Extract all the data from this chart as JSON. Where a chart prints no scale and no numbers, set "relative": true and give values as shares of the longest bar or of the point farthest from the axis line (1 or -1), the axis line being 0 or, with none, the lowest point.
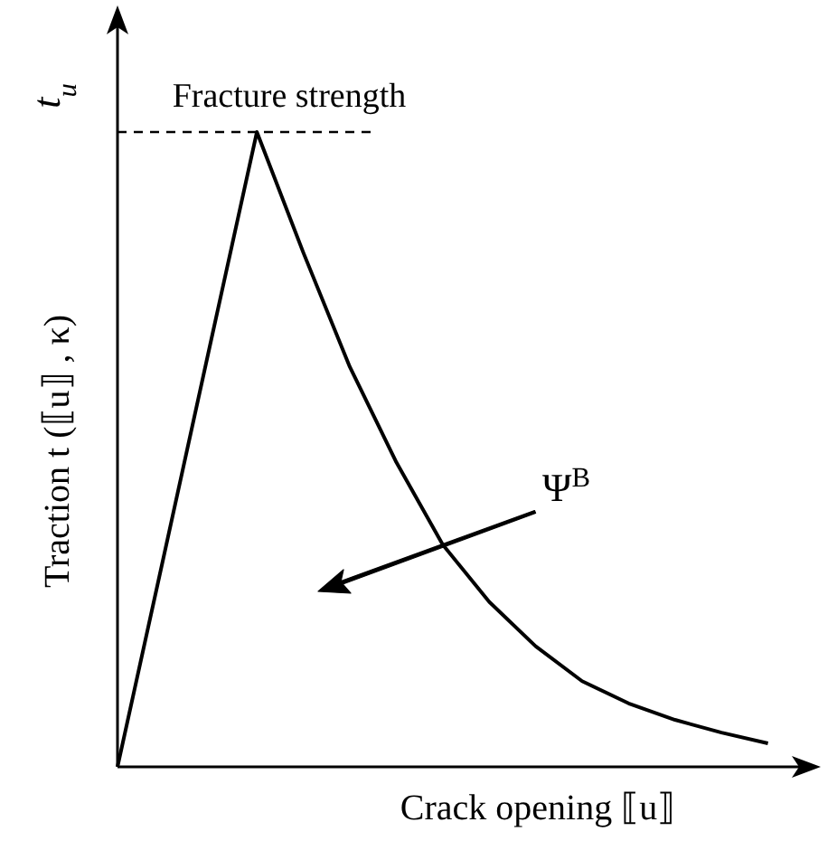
{
  "chart_data": {
    "type": "line",
    "relative": true,
    "xlabel": "Crack opening ⟦u⟧",
    "ylabel": "Traction t (⟦u⟧ , κ)",
    "categories": [
      null,
      null,
      null,
      null,
      null,
      null,
      null,
      null,
      null,
      null,
      null,
      null,
      null,
      null,
      null
    ],
    "series": [
      {
        "color": "#000000",
        "values": [
          0,
          0.333,
          0.667,
          1,
          0.81,
          0.63,
          0.48,
          0.35,
          0.26,
          0.19,
          0.135,
          0.1,
          0.074,
          0.054,
          0.037
        ]
      }
    ],
    "ref_lines": [
      {
        "axis": "y",
        "value": 1,
        "label": "Fracture strength",
        "line_style": "dashed",
        "color": "#000000"
      }
    ],
    "annotations": [
      "t$_{u}$",
      "Ψ$^{B}$"
    ],
    "marker": "none",
    "line_style": "solid"
  }
}
